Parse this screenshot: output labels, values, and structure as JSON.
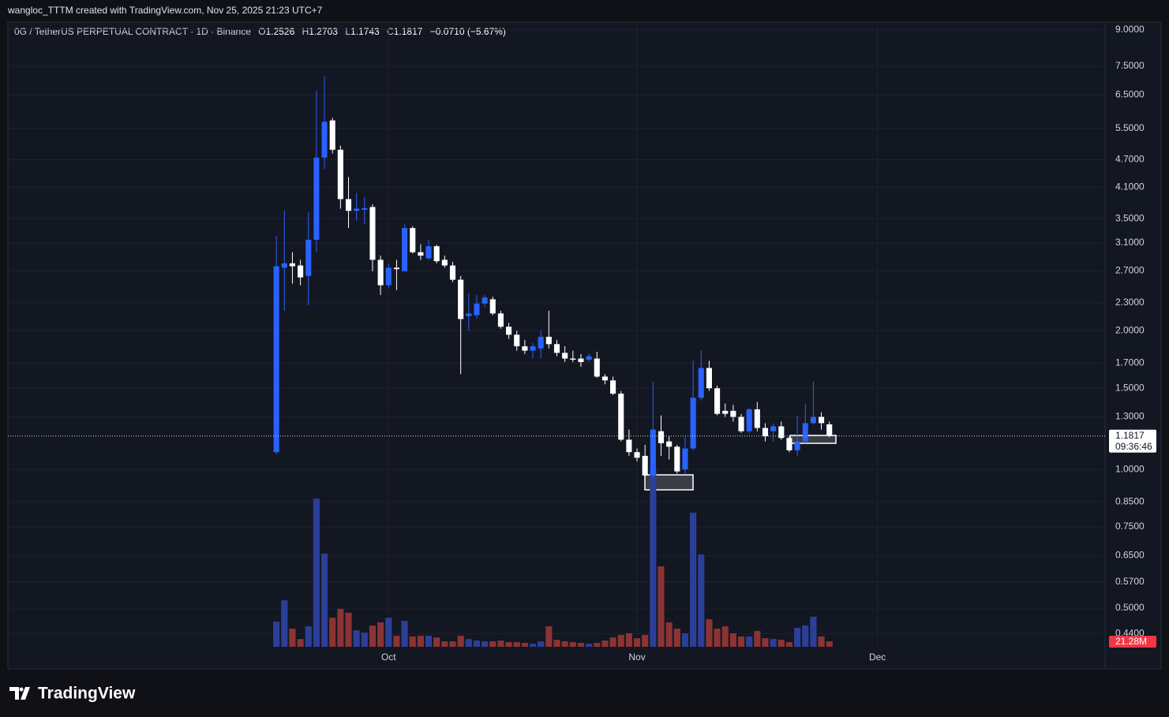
{
  "header": {
    "attribution": "wangloc_TTTM created with TradingView.com, Nov 25, 2025 21:23 UTC+7"
  },
  "footer": {
    "logo": "TradingView"
  },
  "chart_data": {
    "type": "candlestick",
    "title": "0G / TetherUS PERPETUAL CONTRACT · 1D · Binance",
    "ohlc_labels": [
      "O",
      "H",
      "L",
      "C"
    ],
    "change": "−0.0710 (−5.67%)",
    "countdown": "09:36:46",
    "volume_label": "21.28M",
    "up_color": "#2962ff",
    "down_color": "#ffffff",
    "volume_up_color": "#2b3f99",
    "volume_down_color": "#8c3333",
    "log_scale": true,
    "grid": true,
    "ylim": [
      0.4121,
      9.275
    ],
    "yticks": [
      {
        "value": 9,
        "label": "9.0000"
      },
      {
        "value": 7.5,
        "label": "7.5000"
      },
      {
        "value": 6.5,
        "label": "6.5000"
      },
      {
        "value": 5.5,
        "label": "5.5000"
      },
      {
        "value": 4.7,
        "label": "4.7000"
      },
      {
        "value": 4.1,
        "label": "4.1000"
      },
      {
        "value": 3.5,
        "label": "3.5000"
      },
      {
        "value": 3.1,
        "label": "3.1000"
      },
      {
        "value": 2.7,
        "label": "2.7000"
      },
      {
        "value": 2.3,
        "label": "2.3000"
      },
      {
        "value": 2,
        "label": "2.0000"
      },
      {
        "value": 1.7,
        "label": "1.7000"
      },
      {
        "value": 1.5,
        "label": "1.5000"
      },
      {
        "value": 1.3,
        "label": "1.3000"
      },
      {
        "value": 1,
        "label": "1.0000"
      },
      {
        "value": 0.85,
        "label": "0.8500"
      },
      {
        "value": 0.75,
        "label": "0.7500"
      },
      {
        "value": 0.65,
        "label": "0.6500"
      },
      {
        "value": 0.57,
        "label": "0.5700"
      },
      {
        "value": 0.5,
        "label": "0.5000"
      },
      {
        "value": 0.44,
        "label": "0.4400"
      }
    ],
    "xlim": [
      -33.5,
      103.4
    ],
    "xticks": [
      {
        "value": 14,
        "label": "Oct"
      },
      {
        "value": 45,
        "label": "Nov"
      },
      {
        "value": 75,
        "label": "Dec"
      }
    ],
    "open": [
      1.09,
      2.74,
      2.8,
      2.77,
      2.63,
      3.15,
      4.75,
      5.72,
      4.94,
      3.86,
      3.64,
      3.66,
      3.71,
      2.85,
      2.51,
      2.74,
      2.69,
      3.34,
      2.96,
      2.87,
      3.05,
      2.85,
      2.77,
      2.58,
      2.15,
      2.16,
      2.29,
      2.34,
      2.18,
      2.04,
      1.96,
      1.85,
      1.81,
      1.83,
      1.94,
      1.87,
      1.79,
      1.74,
      1.74,
      1.73,
      1.74,
      1.59,
      1.56,
      1.46,
      1.16,
      1.09,
      1.07,
      0.97,
      1.21,
      1.15,
      1.12,
      1.0,
      1.11,
      1.43,
      1.66,
      1.5,
      1.34,
      1.34,
      1.3,
      1.21,
      1.35,
      1.23,
      1.21,
      1.24,
      1.17,
      1.1,
      1.15,
      1.26,
      1.3,
      1.2526
    ],
    "high": [
      3.21,
      3.64,
      2.96,
      2.85,
      3.61,
      6.64,
      7.13,
      5.79,
      5.04,
      4.31,
      3.98,
      3.9,
      3.76,
      2.91,
      2.8,
      2.85,
      3.4,
      3.37,
      3.08,
      3.15,
      3.07,
      2.91,
      2.82,
      2.63,
      2.41,
      2.39,
      2.39,
      2.37,
      2.21,
      2.08,
      2.0,
      1.91,
      1.88,
      2.0,
      2.21,
      1.91,
      1.85,
      1.81,
      1.78,
      1.78,
      1.8,
      1.61,
      1.59,
      1.48,
      1.22,
      1.11,
      1.13,
      1.55,
      1.31,
      1.18,
      1.13,
      1.18,
      1.72,
      1.81,
      1.72,
      1.52,
      1.39,
      1.38,
      1.32,
      1.36,
      1.4,
      1.26,
      1.26,
      1.27,
      1.18,
      1.31,
      1.39,
      1.55,
      1.33,
      1.2703
    ],
    "low": [
      1.08,
      2.21,
      2.53,
      2.51,
      2.27,
      2.96,
      4.48,
      4.85,
      3.68,
      3.34,
      3.47,
      3.4,
      2.69,
      2.39,
      2.48,
      2.45,
      2.69,
      2.94,
      2.85,
      2.85,
      2.8,
      2.74,
      2.55,
      1.61,
      2.0,
      2.12,
      2.25,
      2.16,
      2.02,
      1.92,
      1.81,
      1.78,
      1.74,
      1.74,
      1.83,
      1.76,
      1.71,
      1.71,
      1.67,
      1.71,
      1.58,
      1.53,
      1.45,
      1.15,
      1.07,
      1.04,
      0.96,
      0.96,
      1.07,
      1.05,
      0.98,
      0.98,
      1.1,
      1.41,
      1.48,
      1.31,
      1.3,
      1.27,
      1.2,
      1.2,
      1.21,
      1.15,
      1.15,
      1.16,
      1.09,
      1.07,
      1.14,
      1.25,
      1.22,
      1.1743
    ],
    "close": [
      2.76,
      2.8,
      2.76,
      2.61,
      3.15,
      4.75,
      5.68,
      4.94,
      3.86,
      3.64,
      3.68,
      3.69,
      2.85,
      2.51,
      2.74,
      2.72,
      3.34,
      2.96,
      2.91,
      3.05,
      2.83,
      2.77,
      2.58,
      2.12,
      2.18,
      2.29,
      2.36,
      2.18,
      2.04,
      1.96,
      1.85,
      1.81,
      1.85,
      1.94,
      1.87,
      1.79,
      1.74,
      1.73,
      1.71,
      1.76,
      1.59,
      1.56,
      1.46,
      1.16,
      1.09,
      1.06,
      0.97,
      1.22,
      1.14,
      1.12,
      0.99,
      1.11,
      1.43,
      1.66,
      1.5,
      1.32,
      1.32,
      1.3,
      1.21,
      1.35,
      1.23,
      1.18,
      1.24,
      1.17,
      1.1,
      1.15,
      1.26,
      1.3,
      1.26,
      1.1817
    ],
    "volume": [
      97,
      179,
      70,
      30,
      79,
      571,
      359,
      112,
      146,
      131,
      64,
      55,
      82,
      94,
      112,
      43,
      100,
      40,
      43,
      43,
      36,
      21,
      21,
      43,
      30,
      24,
      21,
      21,
      24,
      18,
      18,
      15,
      12,
      21,
      79,
      27,
      21,
      18,
      15,
      12,
      15,
      24,
      36,
      46,
      52,
      33,
      46,
      684,
      310,
      94,
      70,
      52,
      517,
      356,
      106,
      70,
      79,
      52,
      40,
      40,
      61,
      33,
      30,
      27,
      18,
      73,
      82,
      116,
      40,
      21.28
    ]
  }
}
